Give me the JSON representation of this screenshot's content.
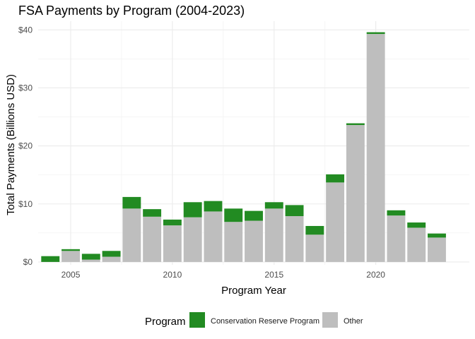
{
  "chart_data": {
    "type": "bar",
    "stacked": true,
    "title": "FSA Payments by Program (2004-2023)",
    "xlabel": "Program Year",
    "ylabel": "Total Payments (Billions USD)",
    "x": [
      2004,
      2005,
      2006,
      2007,
      2008,
      2009,
      2010,
      2011,
      2012,
      2013,
      2014,
      2015,
      2016,
      2017,
      2018,
      2019,
      2020,
      2021,
      2022,
      2023
    ],
    "series": [
      {
        "name": "Other",
        "color": "#bebebe",
        "values": [
          0.0,
          1.9,
          0.4,
          0.9,
          9.2,
          7.8,
          6.3,
          7.7,
          8.7,
          6.9,
          7.1,
          9.2,
          7.9,
          4.7,
          13.7,
          23.6,
          39.3,
          8.0,
          5.9,
          4.2
        ]
      },
      {
        "name": "Conservation Reserve Program",
        "color": "#228b22",
        "values": [
          1.0,
          0.3,
          1.0,
          1.0,
          2.0,
          1.3,
          1.0,
          2.6,
          1.8,
          2.3,
          1.7,
          1.1,
          1.9,
          1.5,
          1.4,
          0.3,
          0.3,
          0.9,
          0.9,
          0.7
        ]
      }
    ],
    "xticks": [
      2005,
      2010,
      2015,
      2020
    ],
    "yticks": [
      0,
      10,
      20,
      30,
      40
    ],
    "ytick_labels": [
      "$0",
      "$10",
      "$20",
      "$30",
      "$40"
    ],
    "xlim": [
      2003.4,
      2024.6
    ],
    "ylim": [
      -0.5,
      41.5
    ],
    "grid": true,
    "legend": {
      "title": "Program",
      "position": "bottom",
      "entries": [
        "Conservation Reserve Program",
        "Other"
      ]
    }
  }
}
